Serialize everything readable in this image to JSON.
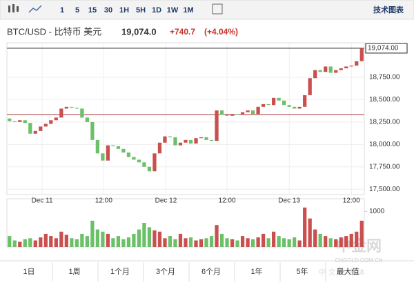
{
  "toolbar": {
    "intervals": [
      "1",
      "5",
      "15",
      "30",
      "1H",
      "5H",
      "1D",
      "1W",
      "1M"
    ],
    "tech_chart": "技术图表"
  },
  "header": {
    "pair": "BTC/USD - 比特币 美元",
    "price": "19,074.0",
    "change": "+740.7",
    "change_pct": "(+4.04%)"
  },
  "chart_data": {
    "type": "candlestick",
    "open": [
      18290,
      18260,
      18250,
      18270,
      18240,
      18120,
      18150,
      18200,
      18230,
      18270,
      18300,
      18400,
      18420,
      18410,
      18400,
      18300,
      18250,
      18050,
      17900,
      17820,
      17990,
      17980,
      17950,
      17910,
      17860,
      17830,
      17800,
      17750,
      17700,
      17900,
      18020,
      18090,
      18080,
      17990,
      18020,
      18050,
      18010,
      18070,
      18080,
      18050,
      18040,
      18380,
      18330,
      18320,
      18340,
      18330,
      18360,
      18380,
      18340,
      18420,
      18450,
      18440,
      18520,
      18490,
      18440,
      18420,
      18400,
      18420,
      18550,
      18740,
      18830,
      18810,
      18870,
      18800,
      18830,
      18850,
      18870,
      18880,
      18930
    ],
    "close": [
      18260,
      18250,
      18270,
      18240,
      18120,
      18150,
      18200,
      18230,
      18270,
      18300,
      18400,
      18420,
      18410,
      18400,
      18300,
      18250,
      18050,
      17900,
      17820,
      17990,
      17980,
      17950,
      17910,
      17860,
      17830,
      17800,
      17750,
      17700,
      17900,
      18020,
      18090,
      18080,
      17990,
      18020,
      18050,
      18010,
      18070,
      18080,
      18050,
      18040,
      18380,
      18330,
      18320,
      18340,
      18330,
      18360,
      18380,
      18340,
      18420,
      18450,
      18440,
      18520,
      18490,
      18440,
      18420,
      18400,
      18420,
      18550,
      18740,
      18830,
      18810,
      18870,
      18800,
      18830,
      18850,
      18870,
      18880,
      18930,
      19074
    ],
    "volume": [
      250,
      150,
      120,
      180,
      200,
      150,
      220,
      300,
      250,
      200,
      350,
      280,
      200,
      180,
      300,
      250,
      600,
      400,
      350,
      300,
      200,
      250,
      180,
      220,
      300,
      400,
      550,
      450,
      380,
      350,
      200,
      250,
      180,
      300,
      200,
      220,
      150,
      180,
      200,
      250,
      500,
      300,
      200,
      180,
      150,
      250,
      200,
      180,
      220,
      300,
      200,
      350,
      250,
      200,
      180,
      220,
      150,
      900,
      650,
      400,
      300,
      250,
      200,
      180,
      220,
      250,
      300,
      350,
      600
    ],
    "up_color": "#c9504e",
    "down_color": "#6cc06a",
    "ylim": [
      17440,
      19135
    ],
    "yticks": [
      {
        "value": 17500,
        "label": "17,500.00"
      },
      {
        "value": 17750,
        "label": "17,750.00"
      },
      {
        "value": 18000,
        "label": "18,000.00"
      },
      {
        "value": 18250,
        "label": "18,250.00"
      },
      {
        "value": 18500,
        "label": "18,500.00"
      },
      {
        "value": 18750,
        "label": "18,750.00"
      }
    ],
    "last_price": {
      "value": 19074,
      "label": "19,074.00"
    },
    "prev_close": 18333.3,
    "xlim": [
      -0.5,
      68.5
    ],
    "xticks": [
      {
        "value": 6.3,
        "label": "Dec 11"
      },
      {
        "value": 18.2,
        "label": "12:00"
      },
      {
        "value": 30.2,
        "label": "Dec 12"
      },
      {
        "value": 42,
        "label": "12:00"
      },
      {
        "value": 54,
        "label": "Dec 13"
      },
      {
        "value": 66,
        "label": "12:00"
      }
    ],
    "vlim": [
      0,
      1100
    ],
    "vticks": [
      1000
    ],
    "grid": true
  },
  "ranges": [
    "1日",
    "1周",
    "1个月",
    "3个月",
    "6个月",
    "1年",
    "5年",
    "最大值"
  ],
  "watermark": {
    "logo": "中金网",
    "url": "CNGOLD.COM.CN",
    "slogan": "中 文 新 媒 体"
  }
}
